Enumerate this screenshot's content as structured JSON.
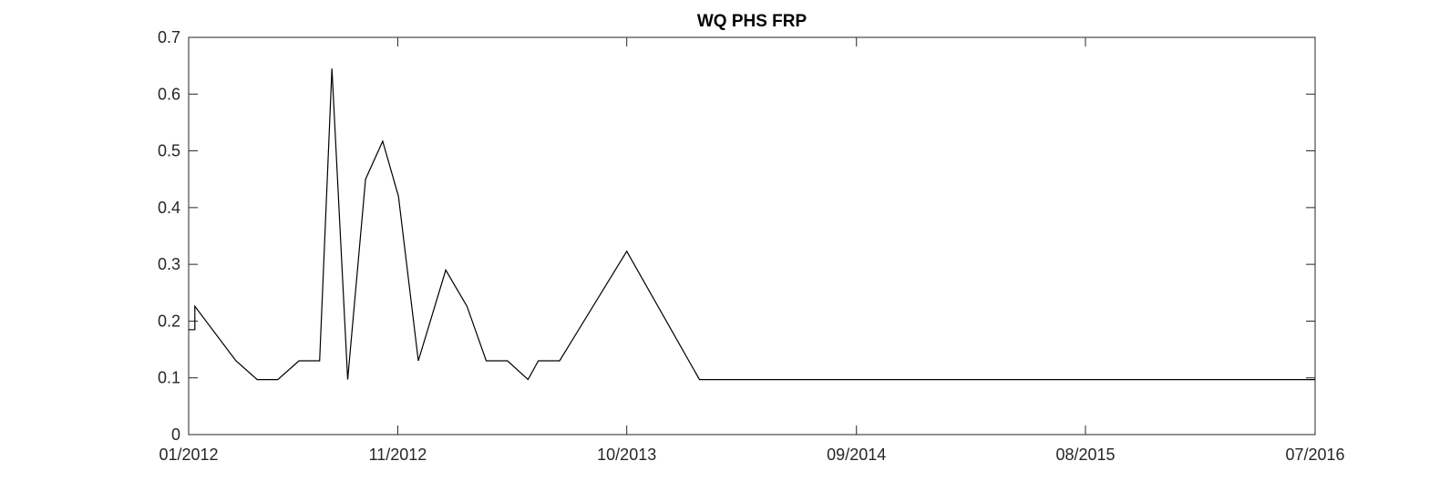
{
  "chart_data": {
    "type": "line",
    "title": "WQ PHS FRP",
    "xlabel": "",
    "ylabel": "",
    "x_tick_labels": [
      "01/2012",
      "11/2012",
      "10/2013",
      "09/2014",
      "08/2015",
      "07/2016"
    ],
    "x_ticks": [
      "2012-01-01",
      "2012-11-01",
      "2013-10-01",
      "2014-09-01",
      "2015-08-01",
      "2016-07-01"
    ],
    "xlim": [
      "2012-01-01",
      "2016-07-01"
    ],
    "y_ticks": [
      0,
      0.1,
      0.2,
      0.3,
      0.4,
      0.5,
      0.6,
      0.7
    ],
    "y_tick_labels": [
      "0",
      "0.1",
      "0.2",
      "0.3",
      "0.4",
      "0.5",
      "0.6",
      "0.7"
    ],
    "ylim": [
      0,
      0.7
    ],
    "grid": false,
    "line_color": "#000000",
    "series": [
      {
        "x": [
          "2012-01-01",
          "2012-01-10",
          "2012-01-10",
          "2012-03-10",
          "2012-04-10",
          "2012-05-10",
          "2012-06-10",
          "2012-07-10",
          "2012-07-28",
          "2012-08-20",
          "2012-09-15",
          "2012-10-10",
          "2012-11-02",
          "2012-12-01",
          "2013-01-10",
          "2013-02-10",
          "2013-03-10",
          "2013-04-10",
          "2013-05-10",
          "2013-05-25",
          "2013-06-25",
          "2013-10-01",
          "2014-01-15",
          "2016-07-01"
        ],
        "values": [
          0.185,
          0.185,
          0.226,
          0.13,
          0.097,
          0.097,
          0.13,
          0.13,
          0.645,
          0.097,
          0.45,
          0.517,
          0.42,
          0.13,
          0.29,
          0.226,
          0.13,
          0.13,
          0.097,
          0.13,
          0.13,
          0.323,
          0.097,
          0.097
        ]
      }
    ]
  }
}
